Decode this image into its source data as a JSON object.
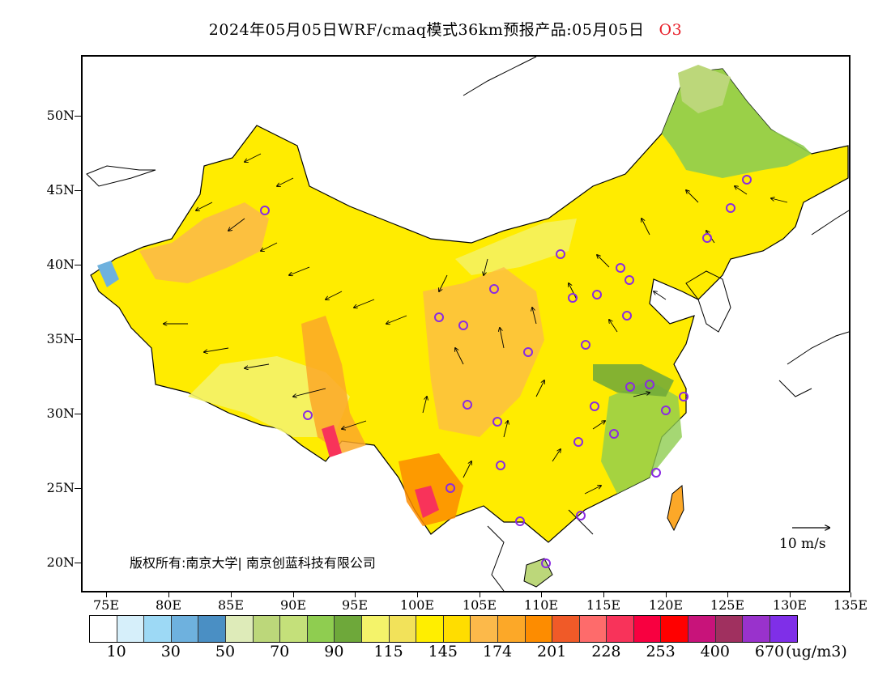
{
  "title": {
    "main": "2024年05月05日WRF/cmaq模式36km预报产品:05月05日",
    "species": "O3"
  },
  "axes": {
    "y_labels": [
      "50N",
      "45N",
      "40N",
      "35N",
      "30N",
      "25N",
      "20N"
    ],
    "x_labels": [
      "75E",
      "80E",
      "85E",
      "90E",
      "95E",
      "100E",
      "105E",
      "110E",
      "115E",
      "120E",
      "125E",
      "130E",
      "135E"
    ]
  },
  "copyright": "版权所有:南京大学| 南京创蓝科技有限公司",
  "vector_reference": {
    "label": "10 m/s"
  },
  "colorbar": {
    "colors": [
      "#ffffff",
      "#d6effa",
      "#9dd9f5",
      "#6eb1de",
      "#4a8fc4",
      "#deebb9",
      "#bcd77a",
      "#c4e07a",
      "#8fcd50",
      "#6ea83a",
      "#f4f36a",
      "#f2e25a",
      "#ffee00",
      "#ffdd00",
      "#fcb94a",
      "#fca828",
      "#fd8c00",
      "#f05a28",
      "#fe6b6b",
      "#f8335a",
      "#f80040",
      "#ff0000",
      "#c8137a",
      "#a0305f",
      "#9932cc",
      "#7f2fe8"
    ],
    "labels": [
      "10",
      "30",
      "50",
      "70",
      "90",
      "115",
      "145",
      "174",
      "201",
      "228",
      "253",
      "400",
      "670"
    ],
    "units": "(ug/m3)"
  },
  "stations": [
    "urumqi",
    "lhasa",
    "kunming",
    "nanning",
    "haikou",
    "beijing",
    "tianjin",
    "shanghai",
    "harbin"
  ]
}
